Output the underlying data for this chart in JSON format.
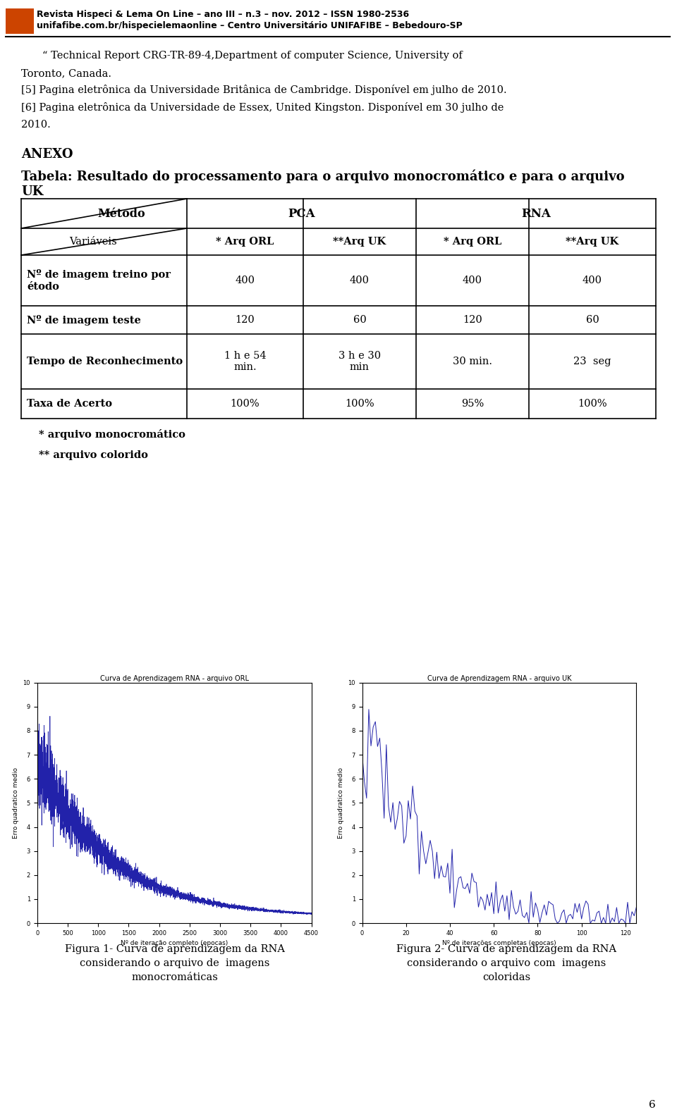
{
  "header_line1": "Revista Hispeci & Lema On Line – ano III – n.3 – nov. 2012 – ISSN 1980-2536",
  "header_line2": "unifafibe.com.br/hispecielemaonline – Centro Universitário UNIFAFIBE – Bebedouro-SP",
  "para1": "“ Technical Report CRG-TR-89-4,Department of computer Science, University of",
  "para1b": "Toronto, Canada.",
  "para2": "[5] Pagina eletrônica da Universidade Britânica de Cambridge. Disponível em julho de 2010.",
  "para3": "[6] Pagina eletrônica da Universidade de Essex, United Kingston. Disponível em 30 julho de",
  "para3b": "2010.",
  "anexo_title": "ANEXO",
  "table_title_line1": "Tabela: Resultado do processamento para o arquivo monocromático e para o arquivo",
  "table_title_line2": "UK",
  "table_header_row1": [
    "Método",
    "PCA",
    "RNA"
  ],
  "table_header_row2": [
    "Variáveis",
    "* Arq ORL",
    "**Arq UK",
    "* Arq ORL",
    "**Arq UK"
  ],
  "table_rows": [
    [
      "Nº de imagem treino por\nétodo",
      "400",
      "400",
      "400",
      "400"
    ],
    [
      "Nº de imagem teste",
      "120",
      "60",
      "120",
      "60"
    ],
    [
      "Tempo de Reconhecimento",
      "1 h e 54\nmin.",
      "3 h e 30\nmin",
      "30 min.",
      "23  seg"
    ],
    [
      "Taxa de Acerto",
      "100%",
      "100%",
      "95%",
      "100%"
    ]
  ],
  "footnote1": "* arquivo monocromático",
  "footnote2": "** arquivo colorido",
  "fig1_title": "Curva de Aprendizagem RNA - arquivo ORL",
  "fig1_xlabel": "Nº de iteração completo (epocas)",
  "fig1_ylabel": "Erro quadratico medio",
  "fig1_caption_line1": "Figura 1- Curva de aprendizagem da RNA",
  "fig1_caption_line2": "considerando o arquivo de  imagens",
  "fig1_caption_line3": "monocromáticas",
  "fig2_title": "Curva de Aprendizagem RNA - arquivo UK",
  "fig2_xlabel": "Nº de iterações completas (epocas)",
  "fig2_ylabel": "Erro quadratico medio",
  "fig2_caption_line1": "Figura 2- Curva de aprendizagem da RNA",
  "fig2_caption_line2": "considerando o arquivo com  imagens",
  "fig2_caption_line3": "coloridas",
  "page_number": "6",
  "bg_color": "#ffffff",
  "text_color": "#000000",
  "line_color": "#2222aa",
  "logo_color": "#cc4400"
}
